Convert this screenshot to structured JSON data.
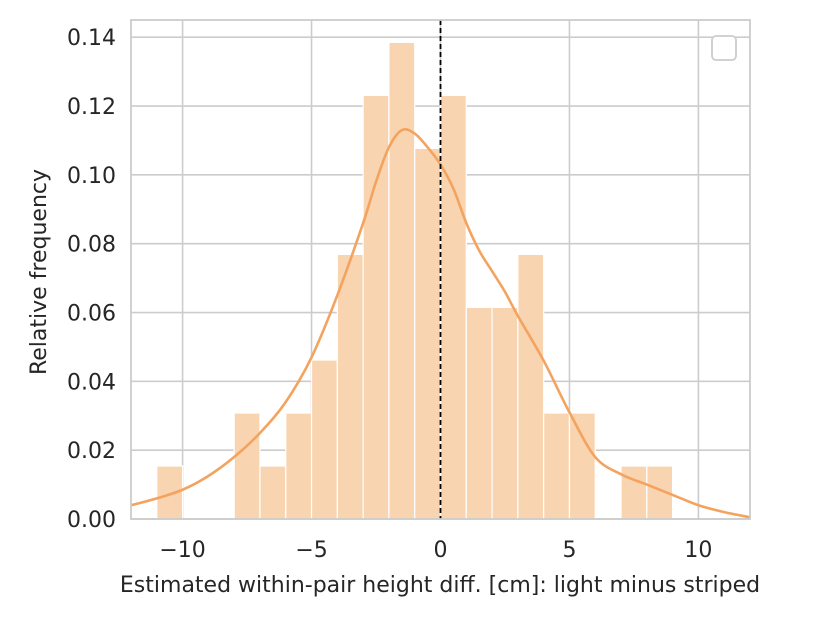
{
  "chart_data": {
    "type": "bar",
    "title": "",
    "xlabel": "Estimated within-pair height diff. [cm]: light minus striped",
    "ylabel": "Relative frequency",
    "xlim": [
      -12,
      12
    ],
    "ylim": [
      0,
      0.145
    ],
    "xticks": [
      -10,
      -5,
      0,
      5,
      10
    ],
    "xtick_labels": [
      "−10",
      "−5",
      "0",
      "5",
      "10"
    ],
    "yticks": [
      0.0,
      0.02,
      0.04,
      0.06,
      0.08,
      0.1,
      0.12,
      0.14
    ],
    "ytick_labels": [
      "0.00",
      "0.02",
      "0.04",
      "0.06",
      "0.08",
      "0.10",
      "0.12",
      "0.14"
    ],
    "grid": true,
    "legend": {
      "placement": "top-right",
      "entries": []
    },
    "colors": {
      "bar": "#f9d4b0",
      "bar_edge": "#ffffff",
      "kde_line": "#f4a35e",
      "reference_line": "#000000",
      "grid": "#cccccc",
      "spine": "#cccccc"
    },
    "bins": [
      {
        "x0": -11,
        "x1": -10,
        "value": 0.0154
      },
      {
        "x0": -10,
        "x1": -9,
        "value": 0.0
      },
      {
        "x0": -9,
        "x1": -8,
        "value": 0.0
      },
      {
        "x0": -8,
        "x1": -7,
        "value": 0.0308
      },
      {
        "x0": -7,
        "x1": -6,
        "value": 0.0154
      },
      {
        "x0": -6,
        "x1": -5,
        "value": 0.0308
      },
      {
        "x0": -5,
        "x1": -4,
        "value": 0.0462
      },
      {
        "x0": -4,
        "x1": -3,
        "value": 0.0769
      },
      {
        "x0": -3,
        "x1": -2,
        "value": 0.1231
      },
      {
        "x0": -2,
        "x1": -1,
        "value": 0.1385
      },
      {
        "x0": -1,
        "x1": 0,
        "value": 0.1077
      },
      {
        "x0": 0,
        "x1": 1,
        "value": 0.1231
      },
      {
        "x0": 1,
        "x1": 2,
        "value": 0.0615
      },
      {
        "x0": 2,
        "x1": 3,
        "value": 0.0615
      },
      {
        "x0": 3,
        "x1": 4,
        "value": 0.0769
      },
      {
        "x0": 4,
        "x1": 5,
        "value": 0.0308
      },
      {
        "x0": 5,
        "x1": 6,
        "value": 0.0308
      },
      {
        "x0": 6,
        "x1": 7,
        "value": 0.0
      },
      {
        "x0": 7,
        "x1": 8,
        "value": 0.0154
      },
      {
        "x0": 8,
        "x1": 9,
        "value": 0.0154
      }
    ],
    "kde": {
      "x": [
        -12,
        -11,
        -10,
        -9,
        -8,
        -7,
        -6,
        -5,
        -4,
        -3,
        -2.5,
        -2,
        -1.5,
        -1,
        -0.5,
        0,
        0.5,
        1,
        1.5,
        2,
        2.5,
        3,
        4,
        5,
        6,
        7,
        8,
        9,
        10,
        11,
        12
      ],
      "y": [
        0.004,
        0.006,
        0.0085,
        0.0125,
        0.018,
        0.025,
        0.034,
        0.047,
        0.065,
        0.086,
        0.098,
        0.108,
        0.113,
        0.112,
        0.108,
        0.103,
        0.096,
        0.086,
        0.078,
        0.072,
        0.066,
        0.059,
        0.046,
        0.031,
        0.018,
        0.013,
        0.01,
        0.007,
        0.004,
        0.002,
        0.0005
      ]
    },
    "reference_line": {
      "x": 0,
      "style": "dashed"
    }
  }
}
